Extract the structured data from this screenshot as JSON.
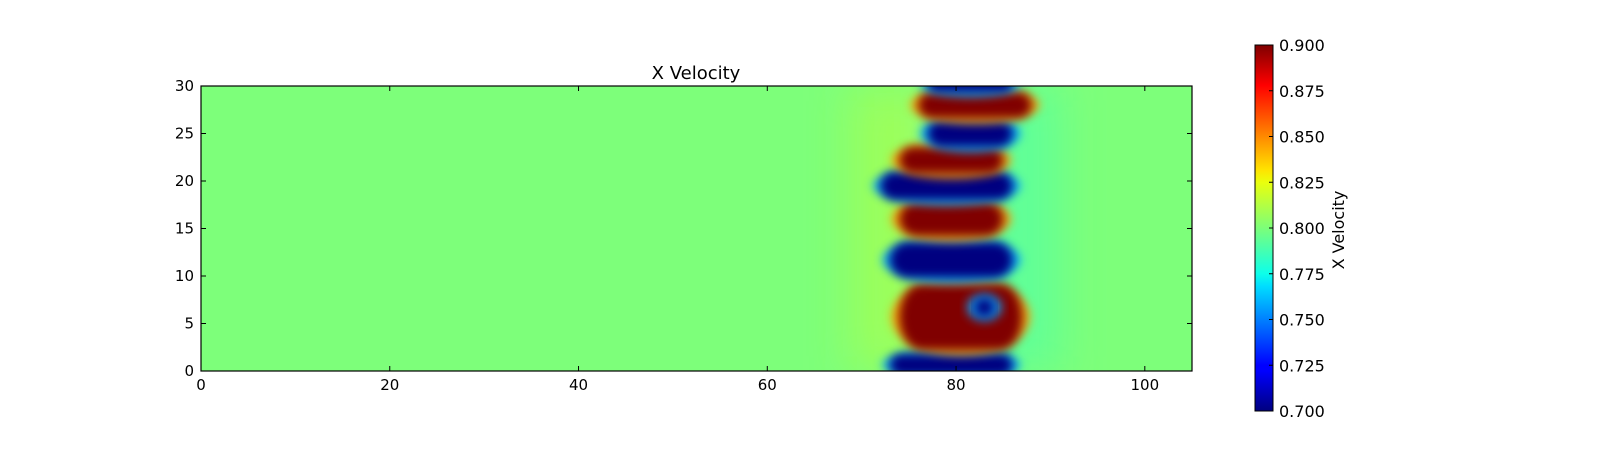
{
  "chart_data": {
    "type": "heatmap",
    "title": "X Velocity",
    "xlabel": "",
    "ylabel": "",
    "xlim": [
      0,
      105
    ],
    "ylim": [
      0,
      30
    ],
    "x_ticks": [
      0,
      20,
      40,
      60,
      80,
      100
    ],
    "y_ticks": [
      0,
      5,
      10,
      15,
      20,
      25,
      30
    ],
    "x_tick_labels": [
      "0",
      "20",
      "40",
      "60",
      "80",
      "100"
    ],
    "y_tick_labels": [
      "0",
      "5",
      "10",
      "15",
      "20",
      "25",
      "30"
    ],
    "colormap": "jet",
    "background_value": 0.8,
    "colorbar": {
      "label": "X Velocity",
      "min": 0.7,
      "max": 0.9,
      "ticks": [
        0.7,
        0.725,
        0.75,
        0.775,
        0.8,
        0.825,
        0.85,
        0.875,
        0.9
      ],
      "tick_labels": [
        "0.700",
        "0.725",
        "0.750",
        "0.775",
        "0.800",
        "0.825",
        "0.850",
        "0.875",
        "0.900"
      ]
    },
    "features": [
      {
        "kind": "low",
        "value": 0.7,
        "x": [
          73,
          86
        ],
        "y": [
          -0.5,
          1.8
        ]
      },
      {
        "kind": "high",
        "value": 0.9,
        "x": [
          74,
          87
        ],
        "y": [
          2.2,
          9.2
        ]
      },
      {
        "kind": "low",
        "value": 0.7,
        "x": [
          82,
          84
        ],
        "y": [
          5.8,
          7.6
        ]
      },
      {
        "kind": "low",
        "value": 0.7,
        "x": [
          73,
          86
        ],
        "y": [
          9.8,
          13.6
        ]
      },
      {
        "kind": "high",
        "value": 0.9,
        "x": [
          74,
          85
        ],
        "y": [
          14.2,
          17.8
        ]
      },
      {
        "kind": "low",
        "value": 0.7,
        "x": [
          72,
          86
        ],
        "y": [
          18.0,
          21.0
        ]
      },
      {
        "kind": "high",
        "value": 0.9,
        "x": [
          74,
          85
        ],
        "y": [
          20.8,
          23.6
        ]
      },
      {
        "kind": "low",
        "value": 0.7,
        "x": [
          77,
          86
        ],
        "y": [
          23.6,
          26.4
        ]
      },
      {
        "kind": "high",
        "value": 0.9,
        "x": [
          76,
          88
        ],
        "y": [
          26.6,
          29.4
        ]
      },
      {
        "kind": "low",
        "value": 0.7,
        "x": [
          77,
          86
        ],
        "y": [
          29.4,
          31.0
        ]
      }
    ]
  }
}
